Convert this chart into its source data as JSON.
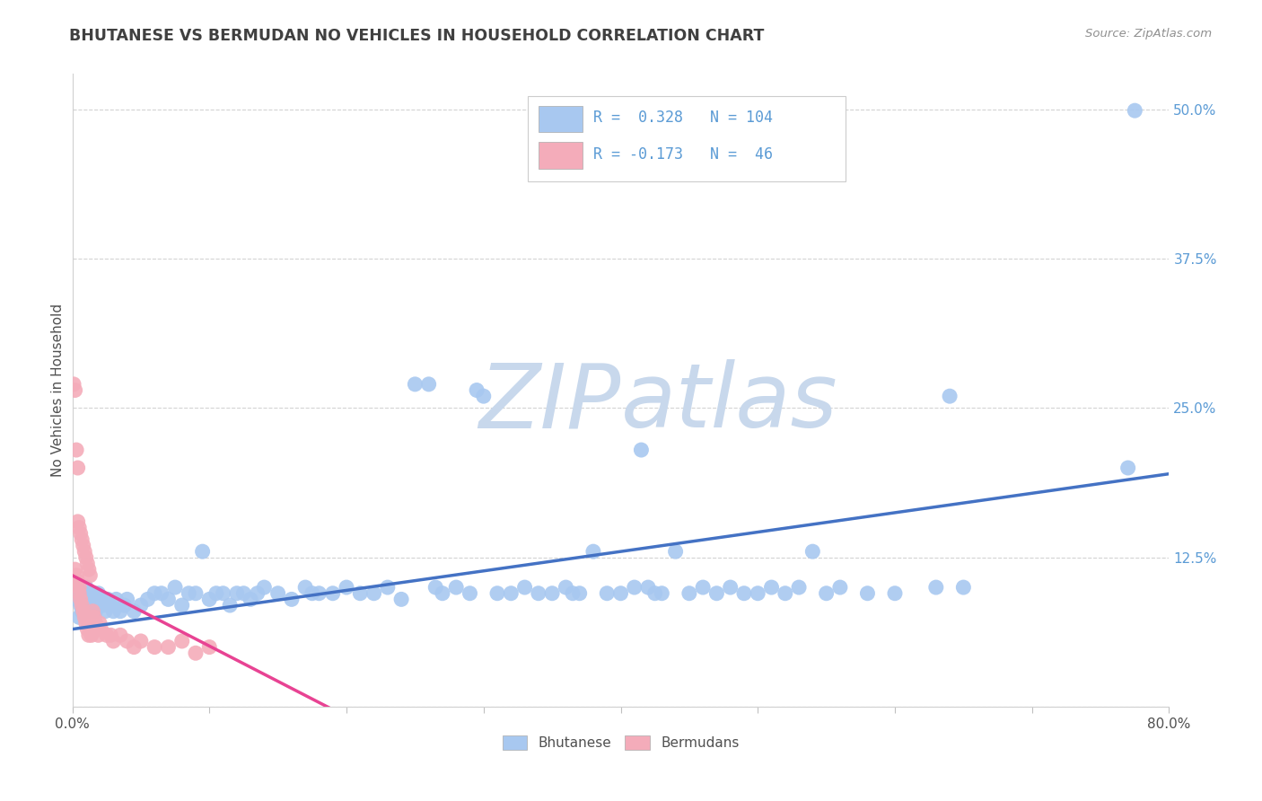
{
  "title": "BHUTANESE VS BERMUDAN NO VEHICLES IN HOUSEHOLD CORRELATION CHART",
  "source": "Source: ZipAtlas.com",
  "ylabel": "No Vehicles in Household",
  "legend_labels": [
    "Bhutanese",
    "Bermudans"
  ],
  "r_bhutanese": 0.328,
  "n_bhutanese": 104,
  "r_bermudan": -0.173,
  "n_bermudan": 46,
  "blue_color": "#A8C8F0",
  "pink_color": "#F4ACBA",
  "blue_line_color": "#4472C4",
  "pink_line_color": "#E84393",
  "title_color": "#404040",
  "axis_label_color": "#5B9BD5",
  "watermark_color": "#C8D8EC",
  "background_color": "#FFFFFF",
  "xlim": [
    0.0,
    0.8
  ],
  "ylim": [
    0.0,
    0.53
  ],
  "ytick_vals": [
    0.0,
    0.125,
    0.25,
    0.375,
    0.5
  ],
  "ytick_labels": [
    "",
    "12.5%",
    "25.0%",
    "37.5%",
    "50.0%"
  ],
  "blue_regression": [
    0.0,
    0.8,
    0.065,
    0.195
  ],
  "pink_regression": [
    0.0,
    0.22,
    0.11,
    -0.02
  ],
  "blue_points_x": [
    0.002,
    0.003,
    0.004,
    0.005,
    0.006,
    0.007,
    0.008,
    0.009,
    0.01,
    0.011,
    0.012,
    0.013,
    0.014,
    0.015,
    0.016,
    0.017,
    0.018,
    0.019,
    0.02,
    0.021,
    0.022,
    0.024,
    0.026,
    0.028,
    0.03,
    0.032,
    0.035,
    0.038,
    0.04,
    0.045,
    0.05,
    0.055,
    0.06,
    0.065,
    0.07,
    0.075,
    0.08,
    0.085,
    0.09,
    0.095,
    0.1,
    0.105,
    0.11,
    0.115,
    0.12,
    0.125,
    0.13,
    0.135,
    0.14,
    0.15,
    0.16,
    0.17,
    0.175,
    0.18,
    0.19,
    0.2,
    0.21,
    0.22,
    0.23,
    0.24,
    0.25,
    0.26,
    0.265,
    0.27,
    0.28,
    0.29,
    0.295,
    0.3,
    0.31,
    0.32,
    0.33,
    0.34,
    0.35,
    0.36,
    0.365,
    0.37,
    0.38,
    0.39,
    0.4,
    0.41,
    0.415,
    0.42,
    0.425,
    0.43,
    0.44,
    0.45,
    0.46,
    0.47,
    0.48,
    0.49,
    0.5,
    0.51,
    0.52,
    0.53,
    0.54,
    0.55,
    0.56,
    0.58,
    0.6,
    0.63,
    0.64,
    0.65,
    0.77,
    0.775
  ],
  "blue_points_y": [
    0.105,
    0.09,
    0.095,
    0.075,
    0.085,
    0.08,
    0.095,
    0.09,
    0.1,
    0.085,
    0.095,
    0.08,
    0.09,
    0.085,
    0.095,
    0.08,
    0.09,
    0.095,
    0.085,
    0.09,
    0.085,
    0.08,
    0.09,
    0.085,
    0.08,
    0.09,
    0.08,
    0.085,
    0.09,
    0.08,
    0.085,
    0.09,
    0.095,
    0.095,
    0.09,
    0.1,
    0.085,
    0.095,
    0.095,
    0.13,
    0.09,
    0.095,
    0.095,
    0.085,
    0.095,
    0.095,
    0.09,
    0.095,
    0.1,
    0.095,
    0.09,
    0.1,
    0.095,
    0.095,
    0.095,
    0.1,
    0.095,
    0.095,
    0.1,
    0.09,
    0.27,
    0.27,
    0.1,
    0.095,
    0.1,
    0.095,
    0.265,
    0.26,
    0.095,
    0.095,
    0.1,
    0.095,
    0.095,
    0.1,
    0.095,
    0.095,
    0.13,
    0.095,
    0.095,
    0.1,
    0.215,
    0.1,
    0.095,
    0.095,
    0.13,
    0.095,
    0.1,
    0.095,
    0.1,
    0.095,
    0.095,
    0.1,
    0.095,
    0.1,
    0.13,
    0.095,
    0.1,
    0.095,
    0.095,
    0.1,
    0.26,
    0.1,
    0.2,
    0.499
  ],
  "pink_points_x": [
    0.001,
    0.002,
    0.002,
    0.003,
    0.003,
    0.004,
    0.004,
    0.004,
    0.005,
    0.005,
    0.005,
    0.006,
    0.006,
    0.007,
    0.007,
    0.008,
    0.008,
    0.009,
    0.009,
    0.01,
    0.01,
    0.011,
    0.011,
    0.012,
    0.012,
    0.013,
    0.014,
    0.015,
    0.016,
    0.017,
    0.018,
    0.019,
    0.02,
    0.021,
    0.025,
    0.028,
    0.03,
    0.035,
    0.04,
    0.045,
    0.05,
    0.06,
    0.07,
    0.08,
    0.09,
    0.1
  ],
  "pink_points_y": [
    0.27,
    0.115,
    0.265,
    0.11,
    0.215,
    0.105,
    0.155,
    0.2,
    0.1,
    0.15,
    0.095,
    0.145,
    0.09,
    0.14,
    0.085,
    0.135,
    0.08,
    0.13,
    0.075,
    0.125,
    0.07,
    0.12,
    0.065,
    0.115,
    0.06,
    0.11,
    0.06,
    0.08,
    0.075,
    0.07,
    0.065,
    0.06,
    0.07,
    0.065,
    0.06,
    0.06,
    0.055,
    0.06,
    0.055,
    0.05,
    0.055,
    0.05,
    0.05,
    0.055,
    0.045,
    0.05
  ]
}
